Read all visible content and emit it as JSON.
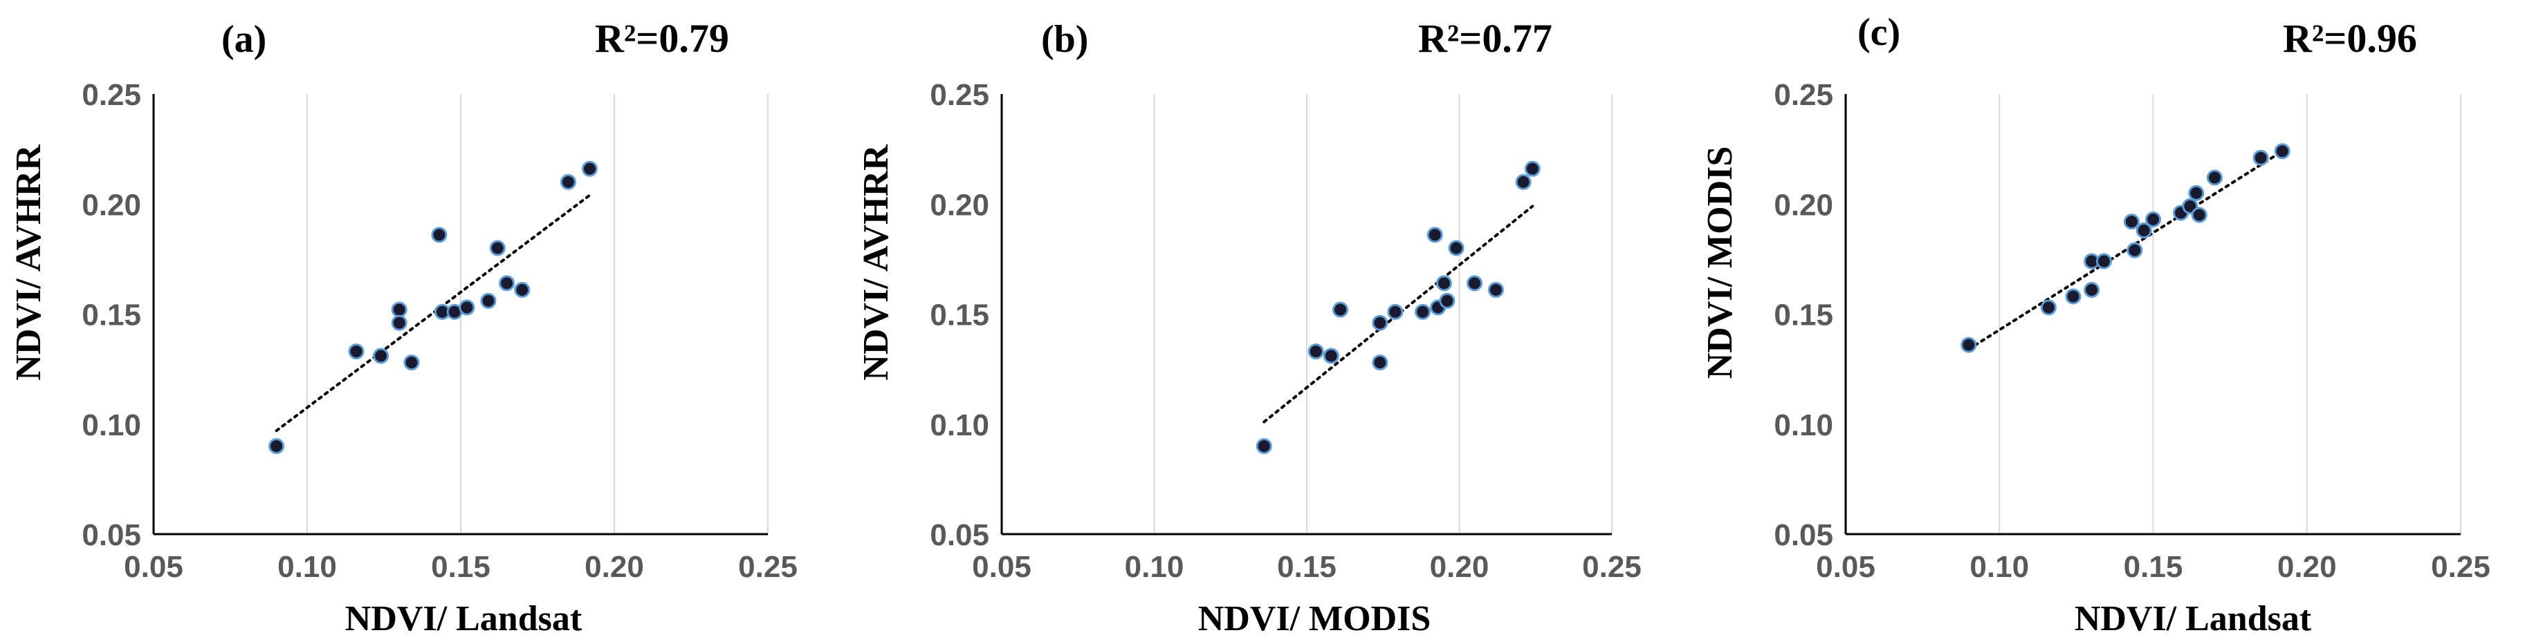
{
  "colors": {
    "point_fill": "#1a1a2e",
    "point_stroke": "#5b9bd5",
    "grid": "#d9d9d9",
    "axis": "#000000",
    "trendline": "#000000"
  },
  "chart_data": [
    {
      "type": "scatter",
      "panel": "(a)",
      "r2": "R²=0.79",
      "xlabel": "NDVI/ Landsat",
      "ylabel": "NDVI/ AVHRR",
      "xlim": [
        0.05,
        0.25
      ],
      "ylim": [
        0.05,
        0.25
      ],
      "xticks": [
        "0.05",
        "0.10",
        "0.15",
        "0.20",
        "0.25"
      ],
      "yticks": [
        "0.05",
        "0.10",
        "0.15",
        "0.20",
        "0.25"
      ],
      "grid": "vertical",
      "trendline": {
        "x": [
          0.09,
          0.192
        ],
        "y": [
          0.097,
          0.204
        ]
      },
      "points": [
        {
          "x": 0.09,
          "y": 0.09
        },
        {
          "x": 0.116,
          "y": 0.133
        },
        {
          "x": 0.124,
          "y": 0.131
        },
        {
          "x": 0.13,
          "y": 0.152
        },
        {
          "x": 0.13,
          "y": 0.146
        },
        {
          "x": 0.134,
          "y": 0.128
        },
        {
          "x": 0.143,
          "y": 0.186
        },
        {
          "x": 0.144,
          "y": 0.151
        },
        {
          "x": 0.148,
          "y": 0.151
        },
        {
          "x": 0.152,
          "y": 0.153
        },
        {
          "x": 0.159,
          "y": 0.156
        },
        {
          "x": 0.162,
          "y": 0.18
        },
        {
          "x": 0.165,
          "y": 0.164
        },
        {
          "x": 0.17,
          "y": 0.161
        },
        {
          "x": 0.185,
          "y": 0.21
        },
        {
          "x": 0.192,
          "y": 0.216
        }
      ]
    },
    {
      "type": "scatter",
      "panel": "(b)",
      "r2": "R²=0.77",
      "xlabel": "NDVI/ MODIS",
      "ylabel": "NDVI/ AVHRR",
      "xlim": [
        0.05,
        0.25
      ],
      "ylim": [
        0.05,
        0.25
      ],
      "xticks": [
        "0.05",
        "0.10",
        "0.15",
        "0.20",
        "0.25"
      ],
      "yticks": [
        "0.05",
        "0.10",
        "0.15",
        "0.20",
        "0.25"
      ],
      "grid": "vertical",
      "trendline": {
        "x": [
          0.136,
          0.224
        ],
        "y": [
          0.101,
          0.199
        ]
      },
      "points": [
        {
          "x": 0.136,
          "y": 0.09
        },
        {
          "x": 0.153,
          "y": 0.133
        },
        {
          "x": 0.158,
          "y": 0.131
        },
        {
          "x": 0.161,
          "y": 0.152
        },
        {
          "x": 0.174,
          "y": 0.146
        },
        {
          "x": 0.174,
          "y": 0.128
        },
        {
          "x": 0.179,
          "y": 0.151
        },
        {
          "x": 0.188,
          "y": 0.151
        },
        {
          "x": 0.192,
          "y": 0.186
        },
        {
          "x": 0.193,
          "y": 0.153
        },
        {
          "x": 0.195,
          "y": 0.164
        },
        {
          "x": 0.196,
          "y": 0.156
        },
        {
          "x": 0.199,
          "y": 0.18
        },
        {
          "x": 0.205,
          "y": 0.164
        },
        {
          "x": 0.212,
          "y": 0.161
        },
        {
          "x": 0.221,
          "y": 0.21
        },
        {
          "x": 0.224,
          "y": 0.216
        }
      ]
    },
    {
      "type": "scatter",
      "panel": "(c)",
      "r2": "R²=0.96",
      "xlabel": "NDVI/ Landsat",
      "ylabel": "NDVI/ MODIS",
      "xlim": [
        0.05,
        0.25
      ],
      "ylim": [
        0.05,
        0.25
      ],
      "xticks": [
        "0.05",
        "0.10",
        "0.15",
        "0.20",
        "0.25"
      ],
      "yticks": [
        "0.05",
        "0.10",
        "0.15",
        "0.20",
        "0.25"
      ],
      "grid": "vertical",
      "trendline": {
        "x": [
          0.09,
          0.192
        ],
        "y": [
          0.134,
          0.224
        ]
      },
      "points": [
        {
          "x": 0.09,
          "y": 0.136
        },
        {
          "x": 0.116,
          "y": 0.153
        },
        {
          "x": 0.124,
          "y": 0.158
        },
        {
          "x": 0.13,
          "y": 0.174
        },
        {
          "x": 0.13,
          "y": 0.161
        },
        {
          "x": 0.134,
          "y": 0.174
        },
        {
          "x": 0.143,
          "y": 0.192
        },
        {
          "x": 0.144,
          "y": 0.179
        },
        {
          "x": 0.147,
          "y": 0.188
        },
        {
          "x": 0.15,
          "y": 0.193
        },
        {
          "x": 0.159,
          "y": 0.196
        },
        {
          "x": 0.162,
          "y": 0.199
        },
        {
          "x": 0.164,
          "y": 0.205
        },
        {
          "x": 0.165,
          "y": 0.195
        },
        {
          "x": 0.17,
          "y": 0.212
        },
        {
          "x": 0.185,
          "y": 0.221
        },
        {
          "x": 0.192,
          "y": 0.224
        }
      ]
    }
  ]
}
